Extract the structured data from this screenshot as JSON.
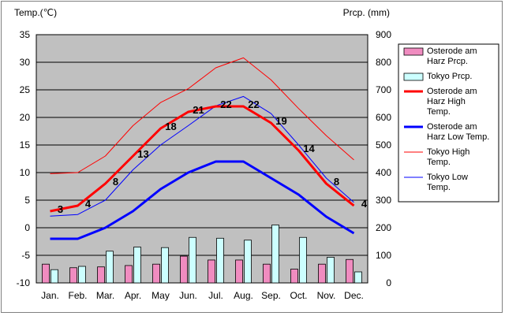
{
  "chart_data": {
    "type": "bar+line",
    "categories": [
      "Jan.",
      "Feb.",
      "Mar.",
      "Apr.",
      "May",
      "Jun.",
      "Jul.",
      "Aug.",
      "Sep.",
      "Oct.",
      "Nov.",
      "Dec."
    ],
    "y_left": {
      "label": "Temp.(℃)",
      "range": [
        -10,
        35
      ],
      "ticks": [
        -10,
        -5,
        0,
        5,
        10,
        15,
        20,
        25,
        30,
        35
      ]
    },
    "y_right": {
      "label": "Prcp. (mm)",
      "range": [
        0,
        900
      ],
      "ticks": [
        0,
        100,
        200,
        300,
        400,
        500,
        600,
        700,
        800,
        900
      ]
    },
    "grid": true,
    "legend_position": "right",
    "bar_series": [
      {
        "name": "Osterode am Harz Prcp.",
        "color": "#f08cc0",
        "values": [
          68,
          55,
          58,
          63,
          68,
          97,
          83,
          83,
          68,
          50,
          68,
          85
        ]
      },
      {
        "name": "Tokyo Prcp.",
        "color": "#ccffff",
        "values": [
          48,
          60,
          115,
          130,
          128,
          165,
          162,
          155,
          210,
          165,
          93,
          40
        ]
      }
    ],
    "line_series": [
      {
        "name": "Osterode am Harz High Temp.",
        "color": "#ff0000",
        "width": 3,
        "values": [
          3,
          4,
          8,
          13,
          18,
          21,
          22,
          22,
          19,
          14,
          8,
          4
        ]
      },
      {
        "name": "Osterode am Harz Low Temp.",
        "color": "#0000ff",
        "width": 3,
        "values": [
          -2,
          -2,
          0,
          3,
          7,
          10,
          12,
          12,
          9,
          6,
          2,
          -1
        ]
      },
      {
        "name": "Tokyo High Temp.",
        "color": "#ff0000",
        "width": 1,
        "values": [
          9.8,
          10,
          13,
          18.5,
          22.7,
          25.2,
          29,
          30.8,
          26.8,
          21.6,
          16.7,
          12.3
        ]
      },
      {
        "name": "Tokyo Low Temp.",
        "color": "#0000ff",
        "width": 1,
        "values": [
          2.1,
          2.4,
          5,
          10.5,
          15,
          18.5,
          22.1,
          23.8,
          20.7,
          15,
          9,
          4.6
        ]
      }
    ],
    "data_labels": [
      "3",
      "4",
      "8",
      "13",
      "18",
      "21",
      "22",
      "22",
      "19",
      "14",
      "8",
      "4"
    ]
  }
}
